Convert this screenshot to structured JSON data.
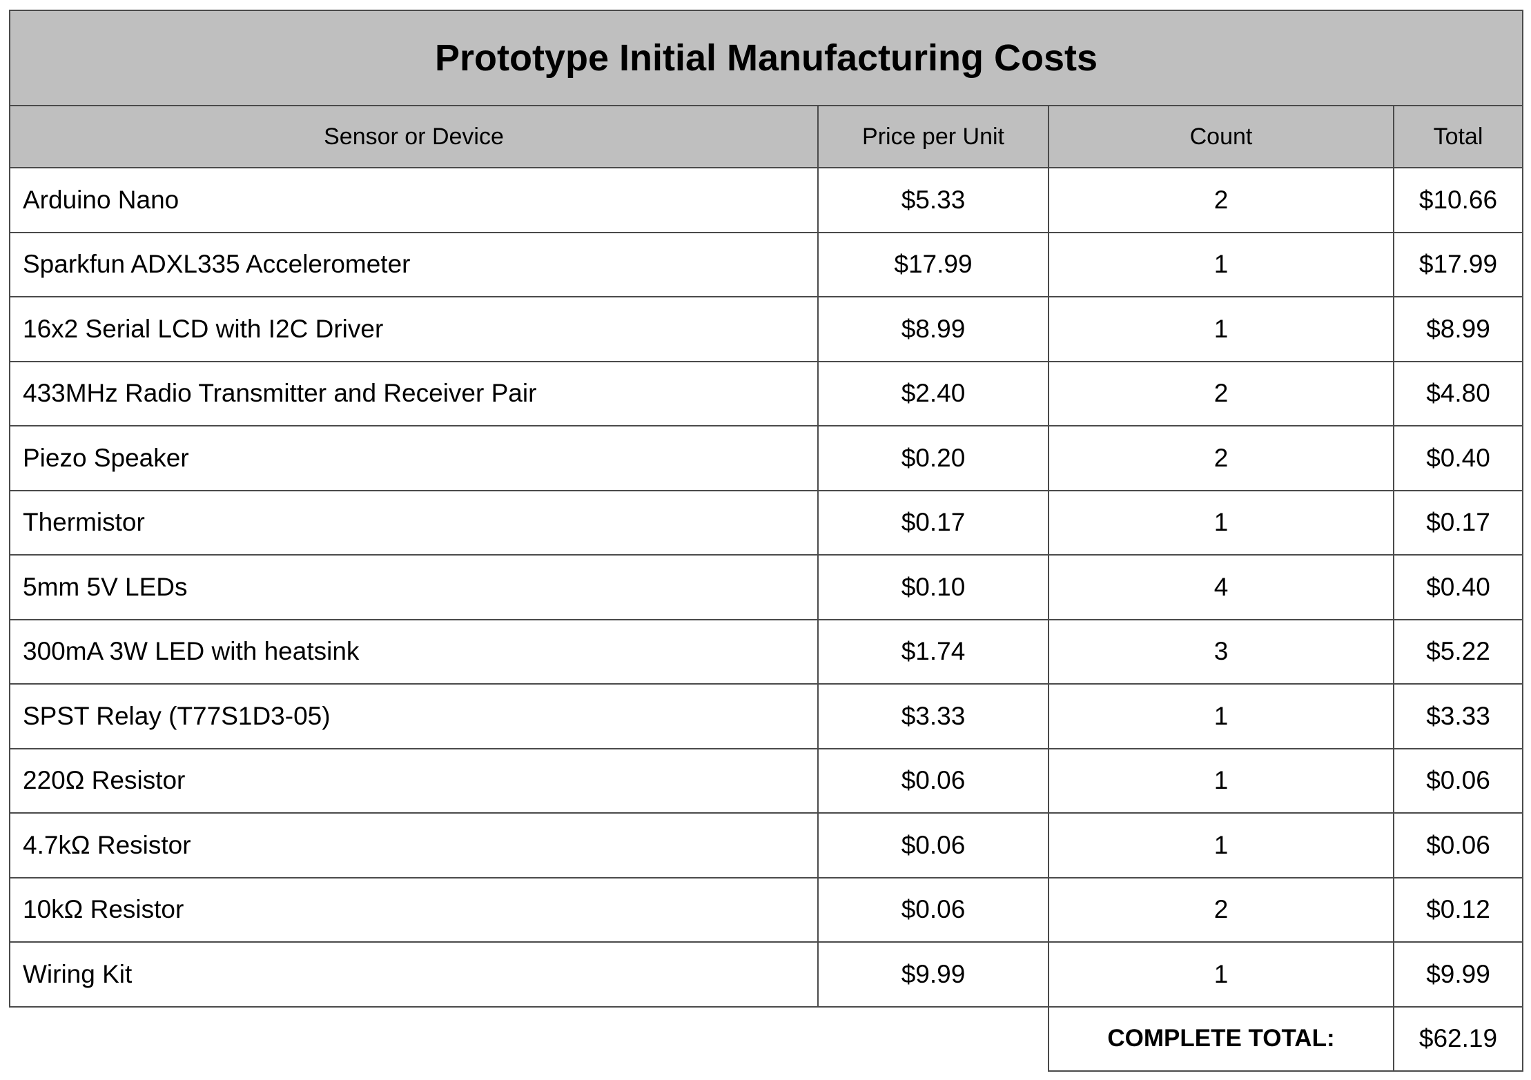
{
  "title": "Prototype Initial Manufacturing Costs",
  "columns": [
    "Sensor or Device",
    "Price per Unit",
    "Count",
    "Total"
  ],
  "rows": [
    {
      "device": "Arduino Nano",
      "price": "$5.33",
      "count": "2",
      "total": "$10.66"
    },
    {
      "device": "Sparkfun ADXL335 Accelerometer",
      "price": "$17.99",
      "count": "1",
      "total": "$17.99"
    },
    {
      "device": "16x2 Serial LCD with I2C Driver",
      "price": "$8.99",
      "count": "1",
      "total": "$8.99"
    },
    {
      "device": "433MHz Radio Transmitter and Receiver Pair",
      "price": "$2.40",
      "count": "2",
      "total": "$4.80"
    },
    {
      "device": "Piezo Speaker",
      "price": "$0.20",
      "count": "2",
      "total": "$0.40"
    },
    {
      "device": "Thermistor",
      "price": "$0.17",
      "count": "1",
      "total": "$0.17"
    },
    {
      "device": "5mm 5V LEDs",
      "price": "$0.10",
      "count": "4",
      "total": "$0.40"
    },
    {
      "device": "300mA 3W LED with heatsink",
      "price": "$1.74",
      "count": "3",
      "total": "$5.22"
    },
    {
      "device": "SPST Relay (T77S1D3-05)",
      "price": "$3.33",
      "count": "1",
      "total": "$3.33"
    },
    {
      "device": "220Ω Resistor",
      "price": "$0.06",
      "count": "1",
      "total": "$0.06"
    },
    {
      "device": "4.7kΩ Resistor",
      "price": "$0.06",
      "count": "1",
      "total": "$0.06"
    },
    {
      "device": "10kΩ Resistor",
      "price": "$0.06",
      "count": "2",
      "total": "$0.12"
    },
    {
      "device": "Wiring Kit",
      "price": "$9.99",
      "count": "1",
      "total": "$9.99"
    }
  ],
  "summary": {
    "label": "COMPLETE TOTAL:",
    "value": "$62.19"
  },
  "colors": {
    "header_background": "#bfbfbf",
    "border": "#4a4a4a"
  }
}
